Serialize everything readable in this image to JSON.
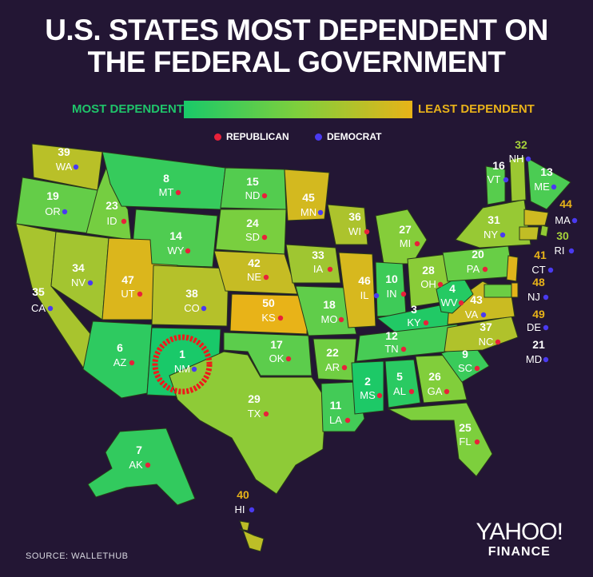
{
  "title_line1": "U.S. STATES MOST DEPENDENT ON",
  "title_line2": "THE FEDERAL GOVERNMENT",
  "legend": {
    "most": "MOST DEPENDENT",
    "least": "LEAST DEPENDENT",
    "colors": [
      "#19c969",
      "#7fcf3c",
      "#e8b318"
    ]
  },
  "parties": {
    "republican": "REPUBLICAN",
    "democrat": "DEMOCRAT",
    "republican_color": "#e8213a",
    "democrat_color": "#4a3af0"
  },
  "source": "SOURCE:  WALLETHUB",
  "logo": {
    "line1": "YAHOO!",
    "line2": "FINANCE"
  },
  "highlight": "NM",
  "states": [
    {
      "abbr": "WA",
      "rank": "39",
      "party": "dem"
    },
    {
      "abbr": "OR",
      "rank": "19",
      "party": "dem"
    },
    {
      "abbr": "CA",
      "rank": "35",
      "party": "dem"
    },
    {
      "abbr": "ID",
      "rank": "23",
      "party": "rep"
    },
    {
      "abbr": "NV",
      "rank": "34",
      "party": "dem"
    },
    {
      "abbr": "MT",
      "rank": "8",
      "party": "rep"
    },
    {
      "abbr": "WY",
      "rank": "14",
      "party": "rep"
    },
    {
      "abbr": "UT",
      "rank": "47",
      "party": "rep"
    },
    {
      "abbr": "CO",
      "rank": "38",
      "party": "dem"
    },
    {
      "abbr": "AZ",
      "rank": "6",
      "party": "rep"
    },
    {
      "abbr": "NM",
      "rank": "1",
      "party": "dem"
    },
    {
      "abbr": "ND",
      "rank": "15",
      "party": "rep"
    },
    {
      "abbr": "SD",
      "rank": "24",
      "party": "rep"
    },
    {
      "abbr": "NE",
      "rank": "42",
      "party": "rep"
    },
    {
      "abbr": "KS",
      "rank": "50",
      "party": "rep"
    },
    {
      "abbr": "OK",
      "rank": "17",
      "party": "rep"
    },
    {
      "abbr": "TX",
      "rank": "29",
      "party": "rep"
    },
    {
      "abbr": "MN",
      "rank": "45",
      "party": "dem"
    },
    {
      "abbr": "IA",
      "rank": "33",
      "party": "rep"
    },
    {
      "abbr": "MO",
      "rank": "18",
      "party": "rep"
    },
    {
      "abbr": "AR",
      "rank": "22",
      "party": "rep"
    },
    {
      "abbr": "LA",
      "rank": "11",
      "party": "rep"
    },
    {
      "abbr": "WI",
      "rank": "36",
      "party": "rep"
    },
    {
      "abbr": "IL",
      "rank": "46",
      "party": "dem"
    },
    {
      "abbr": "MI",
      "rank": "27",
      "party": "rep"
    },
    {
      "abbr": "IN",
      "rank": "10",
      "party": "rep"
    },
    {
      "abbr": "OH",
      "rank": "28",
      "party": "rep"
    },
    {
      "abbr": "KY",
      "rank": "3",
      "party": "rep"
    },
    {
      "abbr": "TN",
      "rank": "12",
      "party": "rep"
    },
    {
      "abbr": "MS",
      "rank": "2",
      "party": "rep"
    },
    {
      "abbr": "AL",
      "rank": "5",
      "party": "rep"
    },
    {
      "abbr": "GA",
      "rank": "26",
      "party": "rep"
    },
    {
      "abbr": "FL",
      "rank": "25",
      "party": "rep"
    },
    {
      "abbr": "SC",
      "rank": "9",
      "party": "rep"
    },
    {
      "abbr": "NC",
      "rank": "37",
      "party": "rep"
    },
    {
      "abbr": "VA",
      "rank": "43",
      "party": "dem"
    },
    {
      "abbr": "WV",
      "rank": "4",
      "party": "rep"
    },
    {
      "abbr": "PA",
      "rank": "20",
      "party": "rep"
    },
    {
      "abbr": "NY",
      "rank": "31",
      "party": "dem"
    },
    {
      "abbr": "VT",
      "rank": "16",
      "party": "dem"
    },
    {
      "abbr": "NH",
      "rank": "32",
      "party": "dem"
    },
    {
      "abbr": "ME",
      "rank": "13",
      "party": "dem"
    },
    {
      "abbr": "MA",
      "rank": "44",
      "party": "dem"
    },
    {
      "abbr": "RI",
      "rank": "30",
      "party": "dem"
    },
    {
      "abbr": "CT",
      "rank": "41",
      "party": "dem"
    },
    {
      "abbr": "NJ",
      "rank": "48",
      "party": "dem"
    },
    {
      "abbr": "DE",
      "rank": "49",
      "party": "dem"
    },
    {
      "abbr": "MD",
      "rank": "21",
      "party": "dem"
    },
    {
      "abbr": "AK",
      "rank": "7",
      "party": "rep"
    },
    {
      "abbr": "HI",
      "rank": "40",
      "party": "dem"
    }
  ]
}
